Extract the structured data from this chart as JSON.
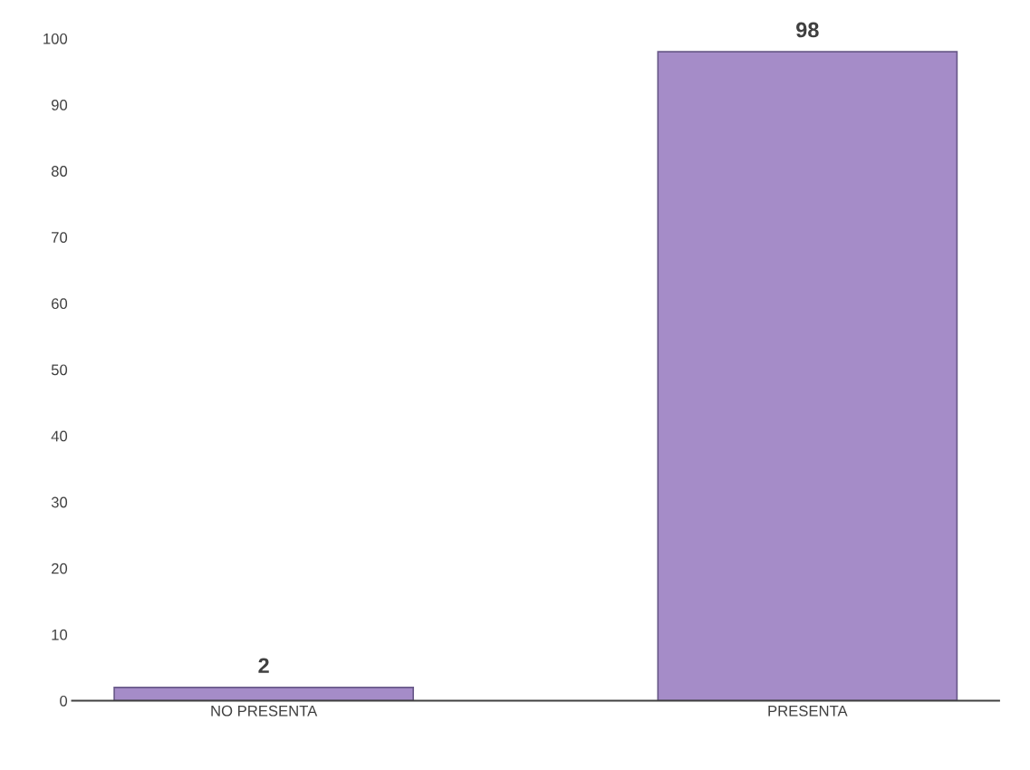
{
  "chart_data": {
    "type": "bar",
    "categories": [
      "NO PRESENTA",
      "PRESENTA"
    ],
    "values": [
      2,
      98
    ],
    "color": "#a58cc8",
    "ylim": [
      0,
      100
    ],
    "yticks": [
      0,
      10,
      20,
      30,
      40,
      50,
      60,
      70,
      80,
      90,
      100
    ],
    "data_labels": true,
    "grid": false
  }
}
